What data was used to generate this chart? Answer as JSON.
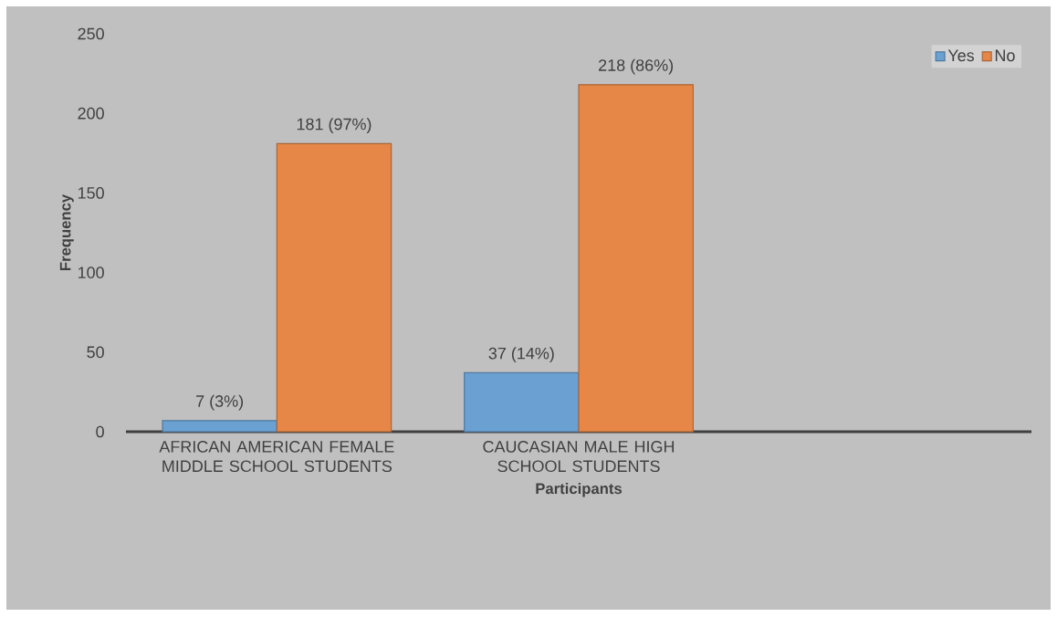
{
  "chart_data": {
    "type": "bar",
    "xlabel": "Participants",
    "ylabel": "Frequency",
    "categories": [
      "AFRICAN AMERICAN FEMALE MIDDLE SCHOOL STUDENTS",
      "CAUCASIAN MALE HIGH SCHOOL STUDENTS",
      null
    ],
    "series": [
      {
        "name": "Yes",
        "color": "#6aa0d2",
        "values": [
          7,
          37,
          null
        ],
        "value_labels": [
          "7 (3%)",
          "37 (14%)",
          null
        ]
      },
      {
        "name": "No",
        "color": "#e68747",
        "values": [
          181,
          218,
          null
        ],
        "value_labels": [
          "181 (97%)",
          "218 (86%)",
          null
        ]
      }
    ],
    "ylim": [
      0,
      250
    ],
    "yticks": [
      0,
      50,
      100,
      150,
      200,
      250
    ],
    "legend": "top right"
  }
}
